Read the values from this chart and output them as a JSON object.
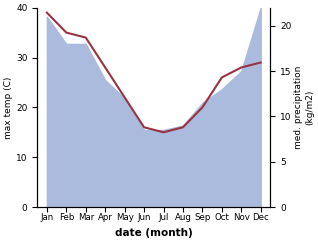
{
  "months": [
    "Jan",
    "Feb",
    "Mar",
    "Apr",
    "May",
    "Jun",
    "Jul",
    "Aug",
    "Sep",
    "Oct",
    "Nov",
    "Dec"
  ],
  "temp": [
    39,
    35,
    34,
    28,
    22,
    16,
    15,
    16,
    20,
    26,
    28,
    29
  ],
  "precip": [
    21,
    18,
    18,
    14,
    12,
    8.5,
    8.5,
    9,
    11.5,
    13,
    15,
    22
  ],
  "temp_color": "#993344",
  "precip_area_color": "#aabbdd",
  "temp_ylim": [
    0,
    40
  ],
  "precip_ylim": [
    0,
    22
  ],
  "temp_yticks": [
    0,
    10,
    20,
    30,
    40
  ],
  "precip_yticks": [
    0,
    5,
    10,
    15,
    20
  ],
  "xlabel": "date (month)",
  "ylabel_left": "max temp (C)",
  "ylabel_right": "med. precipitation\n(kg/m2)",
  "figsize": [
    3.18,
    2.42
  ],
  "dpi": 100
}
